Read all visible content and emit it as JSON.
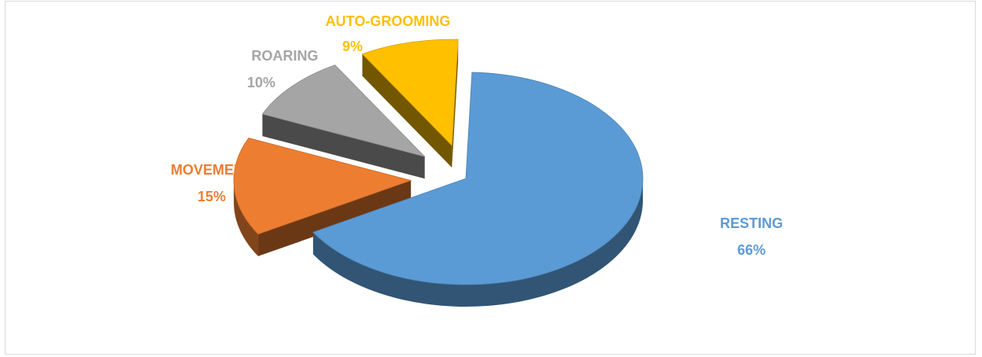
{
  "chart_data": {
    "type": "pie",
    "style": "3d-exploded",
    "title": "",
    "legend": "none",
    "slices": [
      {
        "name": "RESTING",
        "value": 66,
        "label": "66%",
        "color": "#5B9BD5"
      },
      {
        "name": "MOVEMENT",
        "value": 15,
        "label": "15%",
        "color": "#ED7D31"
      },
      {
        "name": "ROARING",
        "value": 10,
        "label": "10%",
        "color": "#A5A5A5"
      },
      {
        "name": "AUTO-GROOMING",
        "value": 9,
        "label": "9%",
        "color": "#FFC000"
      }
    ]
  }
}
